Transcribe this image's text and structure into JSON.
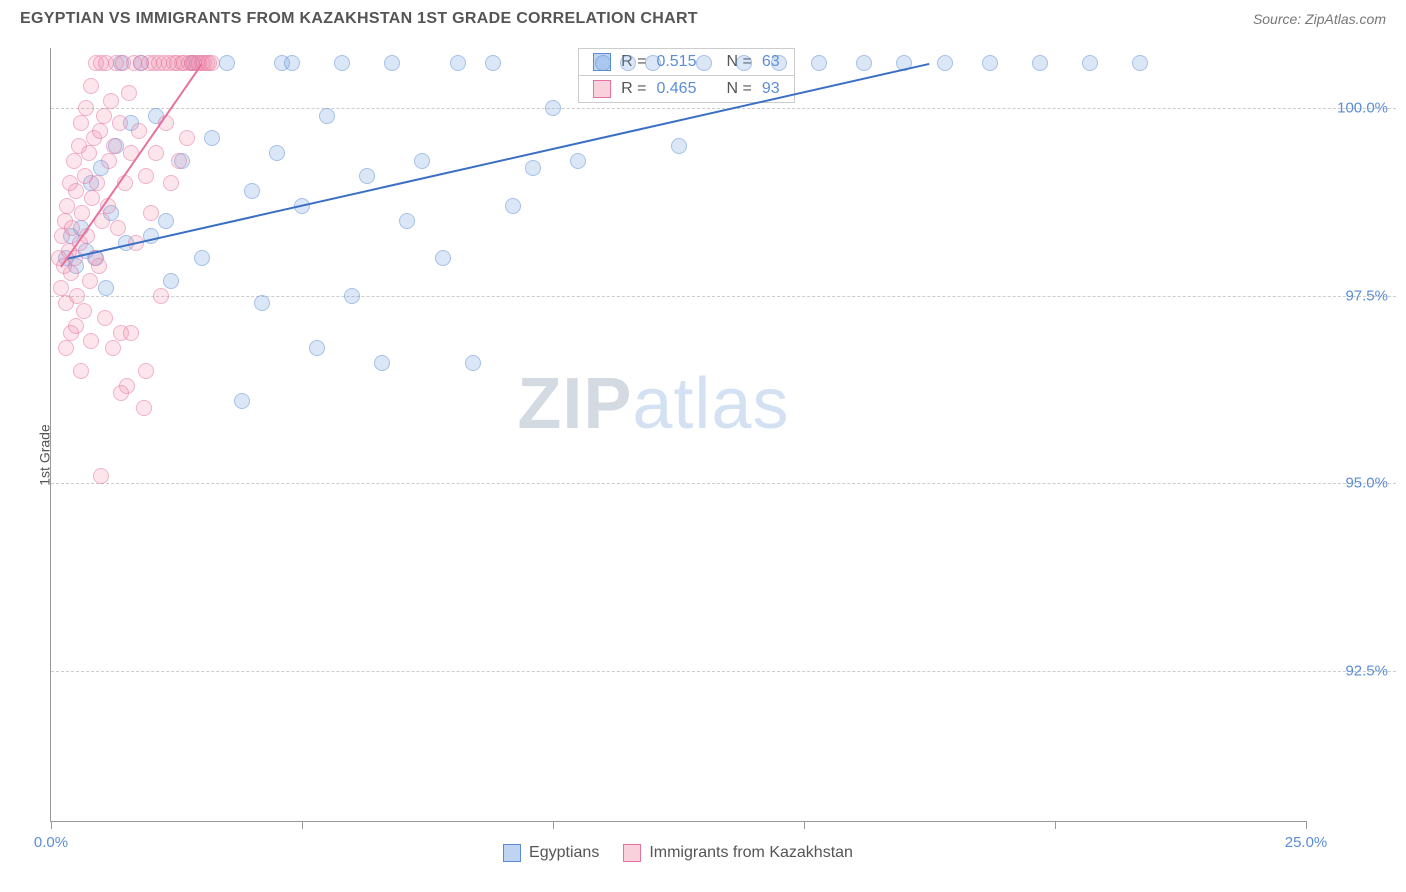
{
  "title": "EGYPTIAN VS IMMIGRANTS FROM KAZAKHSTAN 1ST GRADE CORRELATION CHART",
  "source": "Source: ZipAtlas.com",
  "watermark": {
    "part1": "ZIP",
    "part2": "atlas"
  },
  "chart": {
    "type": "scatter",
    "background_color": "#ffffff",
    "grid_color": "#cccccc",
    "axis_color": "#999999",
    "tick_label_color": "#5b8dd6",
    "axis_label_color": "#555555",
    "ylabel": "1st Grade",
    "ylabel_fontsize": 14,
    "tick_fontsize": 15,
    "xlim": [
      0.0,
      25.0
    ],
    "ylim": [
      90.5,
      100.8
    ],
    "xticks": [
      {
        "v": 0.0,
        "label": "0.0%"
      },
      {
        "v": 5.0,
        "label": ""
      },
      {
        "v": 10.0,
        "label": ""
      },
      {
        "v": 15.0,
        "label": ""
      },
      {
        "v": 20.0,
        "label": ""
      },
      {
        "v": 25.0,
        "label": "25.0%"
      }
    ],
    "yticks": [
      {
        "v": 92.5,
        "label": "92.5%"
      },
      {
        "v": 95.0,
        "label": "95.0%"
      },
      {
        "v": 97.5,
        "label": "97.5%"
      },
      {
        "v": 100.0,
        "label": "100.0%"
      }
    ],
    "marker_size": 16,
    "marker_opacity": 0.55,
    "series": [
      {
        "id": "a",
        "label": "Egyptians",
        "marker_fill": "rgba(110,160,225,0.45)",
        "marker_stroke": "#5b8dd6",
        "r_value": "0.515",
        "n_value": "63",
        "r_label": "R =",
        "n_label": "N =",
        "trend": {
          "x1": 0.3,
          "y1": 98.0,
          "x2": 17.5,
          "y2": 100.6,
          "color": "#3a6fc4",
          "width": 2
        },
        "points": [
          [
            0.3,
            98.0
          ],
          [
            0.4,
            98.3
          ],
          [
            0.5,
            97.9
          ],
          [
            0.6,
            98.4
          ],
          [
            0.7,
            98.1
          ],
          [
            0.8,
            99.0
          ],
          [
            0.9,
            98.0
          ],
          [
            1.0,
            99.2
          ],
          [
            1.1,
            97.6
          ],
          [
            1.2,
            98.6
          ],
          [
            1.3,
            99.5
          ],
          [
            1.4,
            100.6
          ],
          [
            1.5,
            98.2
          ],
          [
            1.6,
            99.8
          ],
          [
            1.8,
            100.6
          ],
          [
            2.0,
            98.3
          ],
          [
            2.1,
            99.9
          ],
          [
            2.3,
            98.5
          ],
          [
            2.4,
            97.7
          ],
          [
            2.6,
            99.3
          ],
          [
            2.8,
            100.6
          ],
          [
            3.0,
            98.0
          ],
          [
            3.2,
            99.6
          ],
          [
            3.5,
            100.6
          ],
          [
            3.8,
            96.1
          ],
          [
            4.0,
            98.9
          ],
          [
            4.2,
            97.4
          ],
          [
            4.5,
            99.4
          ],
          [
            4.6,
            100.6
          ],
          [
            4.8,
            100.6
          ],
          [
            5.0,
            98.7
          ],
          [
            5.3,
            96.8
          ],
          [
            5.5,
            99.9
          ],
          [
            5.8,
            100.6
          ],
          [
            6.0,
            97.5
          ],
          [
            6.3,
            99.1
          ],
          [
            6.6,
            96.6
          ],
          [
            6.8,
            100.6
          ],
          [
            7.1,
            98.5
          ],
          [
            7.4,
            99.3
          ],
          [
            7.8,
            98.0
          ],
          [
            8.1,
            100.6
          ],
          [
            8.4,
            96.6
          ],
          [
            8.8,
            100.6
          ],
          [
            9.2,
            98.7
          ],
          [
            9.6,
            99.2
          ],
          [
            10.0,
            100.0
          ],
          [
            10.5,
            99.3
          ],
          [
            11.0,
            100.6
          ],
          [
            11.5,
            100.6
          ],
          [
            12.0,
            100.6
          ],
          [
            12.5,
            99.5
          ],
          [
            13.0,
            100.6
          ],
          [
            13.8,
            100.6
          ],
          [
            14.5,
            100.6
          ],
          [
            15.3,
            100.6
          ],
          [
            16.2,
            100.6
          ],
          [
            17.0,
            100.6
          ],
          [
            17.8,
            100.6
          ],
          [
            18.7,
            100.6
          ],
          [
            19.7,
            100.6
          ],
          [
            20.7,
            100.6
          ],
          [
            21.7,
            100.6
          ]
        ]
      },
      {
        "id": "b",
        "label": "Immigrants from Kazakhstan",
        "marker_fill": "rgba(240,140,170,0.40)",
        "marker_stroke": "#e6739f",
        "r_value": "0.465",
        "n_value": "93",
        "r_label": "R =",
        "n_label": "N =",
        "trend": {
          "x1": 0.2,
          "y1": 97.9,
          "x2": 3.0,
          "y2": 100.6,
          "color": "#e6739f",
          "width": 2
        },
        "points": [
          [
            0.15,
            98.0
          ],
          [
            0.2,
            97.6
          ],
          [
            0.22,
            98.3
          ],
          [
            0.25,
            97.9
          ],
          [
            0.28,
            98.5
          ],
          [
            0.3,
            97.4
          ],
          [
            0.32,
            98.7
          ],
          [
            0.35,
            98.1
          ],
          [
            0.38,
            99.0
          ],
          [
            0.4,
            97.8
          ],
          [
            0.42,
            98.4
          ],
          [
            0.45,
            99.3
          ],
          [
            0.48,
            98.0
          ],
          [
            0.5,
            98.9
          ],
          [
            0.52,
            97.5
          ],
          [
            0.55,
            99.5
          ],
          [
            0.58,
            98.2
          ],
          [
            0.6,
            99.8
          ],
          [
            0.62,
            98.6
          ],
          [
            0.65,
            97.3
          ],
          [
            0.68,
            99.1
          ],
          [
            0.7,
            100.0
          ],
          [
            0.72,
            98.3
          ],
          [
            0.75,
            99.4
          ],
          [
            0.78,
            97.7
          ],
          [
            0.8,
            100.3
          ],
          [
            0.82,
            98.8
          ],
          [
            0.85,
            99.6
          ],
          [
            0.88,
            98.0
          ],
          [
            0.9,
            100.6
          ],
          [
            0.92,
            99.0
          ],
          [
            0.95,
            97.9
          ],
          [
            0.98,
            99.7
          ],
          [
            1.0,
            100.6
          ],
          [
            1.02,
            98.5
          ],
          [
            1.05,
            99.9
          ],
          [
            1.08,
            97.2
          ],
          [
            1.1,
            100.6
          ],
          [
            1.13,
            98.7
          ],
          [
            1.16,
            99.3
          ],
          [
            1.2,
            100.1
          ],
          [
            1.23,
            96.8
          ],
          [
            1.26,
            99.5
          ],
          [
            1.3,
            100.6
          ],
          [
            1.33,
            98.4
          ],
          [
            1.37,
            99.8
          ],
          [
            1.4,
            97.0
          ],
          [
            1.44,
            100.6
          ],
          [
            1.48,
            99.0
          ],
          [
            1.52,
            96.3
          ],
          [
            1.56,
            100.2
          ],
          [
            1.6,
            99.4
          ],
          [
            1.65,
            100.6
          ],
          [
            1.7,
            98.2
          ],
          [
            1.75,
            99.7
          ],
          [
            1.8,
            100.6
          ],
          [
            1.85,
            96.0
          ],
          [
            1.9,
            99.1
          ],
          [
            1.95,
            100.6
          ],
          [
            2.0,
            98.6
          ],
          [
            2.05,
            100.6
          ],
          [
            2.1,
            99.4
          ],
          [
            2.15,
            100.6
          ],
          [
            2.2,
            97.5
          ],
          [
            2.25,
            100.6
          ],
          [
            2.3,
            99.8
          ],
          [
            2.35,
            100.6
          ],
          [
            2.4,
            99.0
          ],
          [
            2.45,
            100.6
          ],
          [
            2.5,
            100.6
          ],
          [
            2.55,
            99.3
          ],
          [
            2.6,
            100.6
          ],
          [
            2.65,
            100.6
          ],
          [
            2.7,
            99.6
          ],
          [
            2.75,
            100.6
          ],
          [
            2.8,
            100.6
          ],
          [
            2.85,
            100.6
          ],
          [
            2.9,
            100.6
          ],
          [
            2.95,
            100.6
          ],
          [
            3.0,
            100.6
          ],
          [
            3.05,
            100.6
          ],
          [
            3.1,
            100.6
          ],
          [
            3.15,
            100.6
          ],
          [
            3.2,
            100.6
          ],
          [
            0.8,
            96.9
          ],
          [
            1.0,
            95.1
          ],
          [
            1.4,
            96.2
          ],
          [
            1.6,
            97.0
          ],
          [
            1.9,
            96.5
          ],
          [
            0.6,
            96.5
          ],
          [
            0.4,
            97.0
          ],
          [
            0.3,
            96.8
          ],
          [
            0.5,
            97.1
          ]
        ]
      }
    ]
  }
}
